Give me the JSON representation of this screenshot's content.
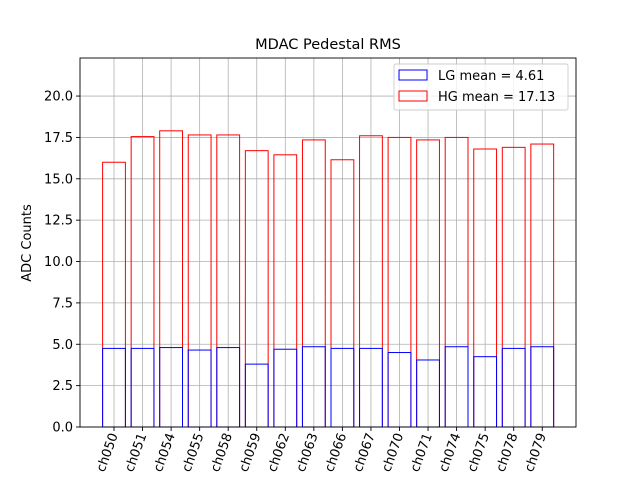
{
  "chart_data": {
    "type": "bar",
    "title": "MDAC Pedestal RMS",
    "xlabel": "",
    "ylabel": "ADC Counts",
    "ylim": [
      0,
      22.3
    ],
    "yticks": [
      "0.0",
      "2.5",
      "5.0",
      "7.5",
      "10.0",
      "12.5",
      "15.0",
      "17.5",
      "20.0"
    ],
    "grid": true,
    "legend_position": "top-right",
    "categories": [
      "ch050",
      "ch051",
      "ch054",
      "ch055",
      "ch058",
      "ch059",
      "ch062",
      "ch063",
      "ch066",
      "ch067",
      "ch070",
      "ch071",
      "ch074",
      "ch075",
      "ch078",
      "ch079"
    ],
    "series": [
      {
        "name": "LG mean = 4.61",
        "color": "#0000ff",
        "fill": "none",
        "values": [
          4.75,
          4.75,
          4.8,
          4.65,
          4.8,
          3.8,
          4.7,
          4.85,
          4.75,
          4.75,
          4.5,
          4.05,
          4.85,
          4.25,
          4.75,
          4.85
        ]
      },
      {
        "name": "HG mean = 17.13",
        "color": "#ff0000",
        "fill": "none",
        "values": [
          16.0,
          17.55,
          17.9,
          17.65,
          17.65,
          16.7,
          16.45,
          17.35,
          16.15,
          17.6,
          17.5,
          17.35,
          17.5,
          16.8,
          16.9,
          17.1
        ]
      }
    ]
  }
}
